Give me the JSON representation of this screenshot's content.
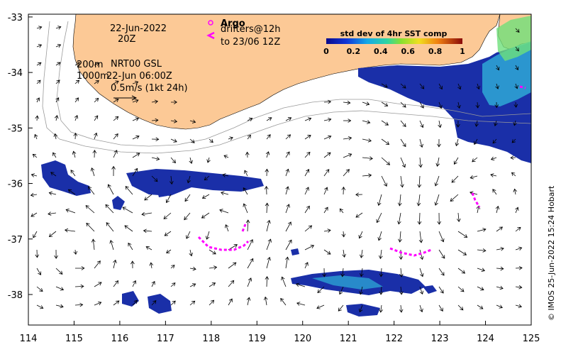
{
  "map": {
    "x_ticks": [
      "114",
      "115",
      "116",
      "117",
      "118",
      "119",
      "120",
      "121",
      "122",
      "123",
      "124",
      "125"
    ],
    "y_ticks": [
      "-33",
      "-34",
      "-35",
      "-36",
      "-37",
      "-38"
    ],
    "xlim": [
      114,
      125
    ],
    "ylim": [
      -38.55,
      -32.95
    ]
  },
  "annotations": {
    "date_line1": "22-Jun-2022",
    "date_line2": "20Z",
    "contour_200": "200m",
    "contour_1000": "1000m",
    "product": "NRT00 GSL",
    "analysis_time": "22-Jun 06:00Z",
    "scale_label": "0.5m/s (1kt 24h)"
  },
  "legend": {
    "argo_label": "Argo",
    "drifters_label": "drifters@12h",
    "drifters_to": "to 23/06 12Z",
    "argo_color": "#ff00ff",
    "drifter_color": "#ff00ff"
  },
  "colorbar": {
    "title": "std dev of 4hr SST comp",
    "ticks": [
      "0",
      "0.2",
      "0.4",
      "0.6",
      "0.8",
      "1"
    ]
  },
  "credit": "© IMOS 25-Jun-2022 15:24 Hobart",
  "colors": {
    "land": "#fcc996",
    "sst_low": "#1a2fa8",
    "contour": "#9a9a9a",
    "arrow": "#000000",
    "marker": "#ff00ff"
  }
}
